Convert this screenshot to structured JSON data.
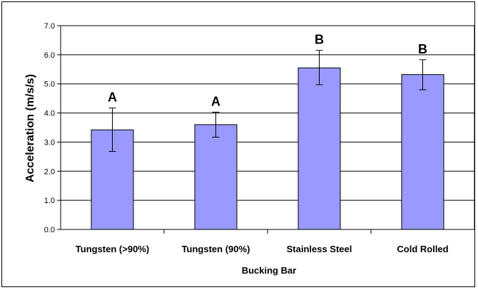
{
  "chart_data": {
    "type": "bar",
    "title": "",
    "xlabel": "Bucking Bar",
    "ylabel": "Acceleration (m/s/s)",
    "ylim": [
      0,
      7
    ],
    "ytick_step": 1,
    "ytick_labels": [
      "0.0",
      "1.0",
      "2.0",
      "3.0",
      "4.0",
      "5.0",
      "6.0",
      "7.0"
    ],
    "grid": "horizontal",
    "legend": "none",
    "categories": [
      "Tungsten (>90%)",
      "Tungsten (90%)",
      "Stainless Steel",
      "Cold Rolled"
    ],
    "values": [
      3.42,
      3.6,
      5.55,
      5.32
    ],
    "error_low": [
      2.68,
      3.17,
      4.97,
      4.8
    ],
    "error_high": [
      4.17,
      4.03,
      6.15,
      5.83
    ],
    "group_labels": [
      "A",
      "A",
      "B",
      "B"
    ],
    "colors": {
      "bar_fill": "#9999ff",
      "bar_stroke": "#000000",
      "plot_background": "#ffffff",
      "grid": "#000000"
    }
  }
}
